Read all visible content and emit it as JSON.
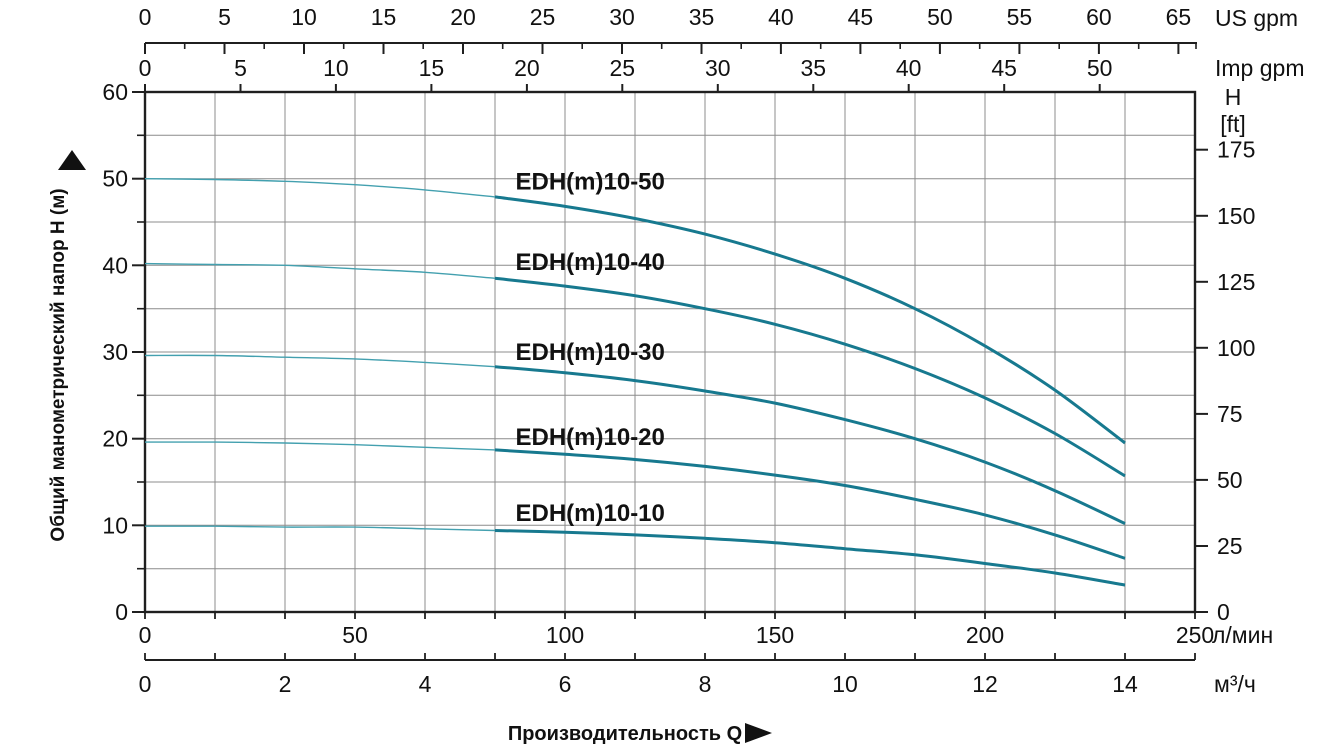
{
  "axes": {
    "us_gpm": {
      "unit": "US gpm",
      "ticks": [
        0,
        5,
        10,
        15,
        20,
        25,
        30,
        35,
        40,
        45,
        50,
        55,
        60,
        65
      ],
      "minor_step": 2.5
    },
    "imp_gpm": {
      "unit": "Imp gpm",
      "ticks": [
        0,
        5,
        10,
        15,
        20,
        25,
        30,
        35,
        40,
        45,
        50
      ]
    },
    "head_m": {
      "title": "Общий манометрический напор H (м)",
      "arrow": "▲",
      "ticks": [
        0,
        10,
        20,
        30,
        40,
        50,
        60
      ],
      "minor_ticks": [
        5,
        15,
        25,
        35,
        45,
        55
      ]
    },
    "head_ft": {
      "unit_line1": "H",
      "unit_line2": "[ft]",
      "ticks": [
        0,
        25,
        50,
        75,
        100,
        125,
        150,
        175
      ]
    },
    "flow_lmin": {
      "unit": "л/мин",
      "ticks": [
        0,
        50,
        100,
        150,
        200,
        250
      ]
    },
    "flow_m3h": {
      "unit": "м³/ч",
      "tick_values": [
        0,
        1,
        2,
        3,
        4,
        5,
        6,
        7,
        8,
        9,
        10,
        11,
        12,
        13,
        14,
        15
      ],
      "label_values": [
        0,
        2,
        4,
        6,
        8,
        10,
        12,
        14
      ]
    }
  },
  "x_title": {
    "text": "Производительность Q",
    "arrow": "►"
  },
  "chart_data": {
    "type": "line",
    "x_unit": "м³/ч",
    "x_range": [
      0,
      15
    ],
    "y_unit": "м",
    "y_range": [
      0,
      60
    ],
    "grid": {
      "x_step_m3h": 1,
      "y_step_m": 5,
      "visible": true
    },
    "secondary_x_units": [
      "US gpm",
      "Imp gpm",
      "л/мин"
    ],
    "secondary_y_unit": "ft",
    "thin_segment_q_range": [
      0,
      5
    ],
    "series": [
      {
        "name": "edhm10-50",
        "label": "EDH(m)10-50",
        "label_q": 6.36,
        "label_h": 49.7,
        "points": [
          [
            0,
            50.0
          ],
          [
            1,
            49.9
          ],
          [
            2,
            49.7
          ],
          [
            3,
            49.3
          ],
          [
            4,
            48.7
          ],
          [
            5,
            47.9
          ],
          [
            6,
            46.8
          ],
          [
            7,
            45.4
          ],
          [
            8,
            43.6
          ],
          [
            9,
            41.3
          ],
          [
            10,
            38.5
          ],
          [
            11,
            35.0
          ],
          [
            12,
            30.7
          ],
          [
            13,
            25.6
          ],
          [
            14,
            19.5
          ]
        ]
      },
      {
        "name": "edhm10-40",
        "label": "EDH(m)10-40",
        "label_q": 6.36,
        "label_h": 40.4,
        "points": [
          [
            0,
            40.2
          ],
          [
            1,
            40.1
          ],
          [
            2,
            40.0
          ],
          [
            3,
            39.6
          ],
          [
            4,
            39.2
          ],
          [
            5,
            38.5
          ],
          [
            6,
            37.6
          ],
          [
            7,
            36.5
          ],
          [
            8,
            35.0
          ],
          [
            9,
            33.2
          ],
          [
            10,
            30.9
          ],
          [
            11,
            28.1
          ],
          [
            12,
            24.7
          ],
          [
            13,
            20.6
          ],
          [
            14,
            15.7
          ]
        ]
      },
      {
        "name": "edhm10-30",
        "label": "EDH(m)10-30",
        "label_q": 6.36,
        "label_h": 30.0,
        "points": [
          [
            0,
            29.6
          ],
          [
            1,
            29.6
          ],
          [
            2,
            29.4
          ],
          [
            3,
            29.2
          ],
          [
            4,
            28.8
          ],
          [
            5,
            28.3
          ],
          [
            6,
            27.6
          ],
          [
            7,
            26.7
          ],
          [
            8,
            25.5
          ],
          [
            9,
            24.1
          ],
          [
            10,
            22.2
          ],
          [
            11,
            20.0
          ],
          [
            12,
            17.3
          ],
          [
            13,
            14.0
          ],
          [
            14,
            10.2
          ]
        ]
      },
      {
        "name": "edhm10-20",
        "label": "EDH(m)10-20",
        "label_q": 6.36,
        "label_h": 20.2,
        "points": [
          [
            0,
            19.6
          ],
          [
            1,
            19.6
          ],
          [
            2,
            19.5
          ],
          [
            3,
            19.3
          ],
          [
            4,
            19.0
          ],
          [
            5,
            18.7
          ],
          [
            6,
            18.2
          ],
          [
            7,
            17.6
          ],
          [
            8,
            16.8
          ],
          [
            9,
            15.8
          ],
          [
            10,
            14.6
          ],
          [
            11,
            13.0
          ],
          [
            12,
            11.2
          ],
          [
            13,
            8.9
          ],
          [
            14,
            6.2
          ]
        ]
      },
      {
        "name": "edhm10-10",
        "label": "EDH(m)10-10",
        "label_q": 6.36,
        "label_h": 11.4,
        "points": [
          [
            0,
            9.9
          ],
          [
            1,
            9.9
          ],
          [
            2,
            9.8
          ],
          [
            3,
            9.8
          ],
          [
            4,
            9.6
          ],
          [
            5,
            9.4
          ],
          [
            6,
            9.2
          ],
          [
            7,
            8.9
          ],
          [
            8,
            8.5
          ],
          [
            9,
            8.0
          ],
          [
            10,
            7.3
          ],
          [
            11,
            6.6
          ],
          [
            12,
            5.6
          ],
          [
            13,
            4.5
          ],
          [
            14,
            3.1
          ]
        ]
      }
    ]
  },
  "colors": {
    "curve": "#17798f",
    "curve_thin": "#43a0af",
    "grid": "#8c8c8c",
    "axis": "#1f1f1f",
    "text": "#111111",
    "background": "#ffffff"
  }
}
